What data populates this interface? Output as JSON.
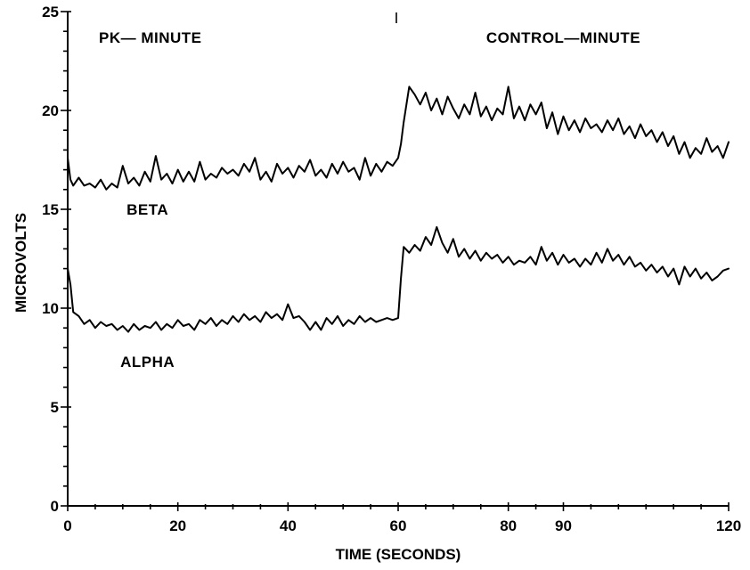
{
  "chart_data": {
    "type": "line",
    "xlabel": "TIME (SECONDS)",
    "ylabel": "MICROVOLTS",
    "xlim": [
      0,
      120
    ],
    "ylim": [
      0,
      25
    ],
    "x_ticks": [
      0,
      20,
      40,
      60,
      80,
      90,
      120
    ],
    "x_tick_labels": [
      "0",
      "20",
      "40",
      "60",
      "80",
      "90",
      "120"
    ],
    "y_ticks": [
      0,
      5,
      10,
      15,
      20,
      25
    ],
    "y_tick_labels": [
      "0",
      "5",
      "10",
      "15",
      "20",
      "25"
    ],
    "grid": false,
    "annotations": [
      {
        "text": "PK— MINUTE",
        "x": 15,
        "y": 23.7
      },
      {
        "text": "CONTROL—MINUTE",
        "x": 90,
        "y": 23.7
      },
      {
        "text": "BETA",
        "x": 14.5,
        "y": 15.0
      },
      {
        "text": "ALPHA",
        "x": 14.5,
        "y": 7.3
      }
    ],
    "divider_x": 60,
    "series": [
      {
        "name": "BETA",
        "x": [
          0,
          0.5,
          1,
          2,
          3,
          4,
          5,
          6,
          7,
          8,
          9,
          10,
          11,
          12,
          13,
          14,
          15,
          16,
          17,
          18,
          19,
          20,
          21,
          22,
          23,
          24,
          25,
          26,
          27,
          28,
          29,
          30,
          31,
          32,
          33,
          34,
          35,
          36,
          37,
          38,
          39,
          40,
          41,
          42,
          43,
          44,
          45,
          46,
          47,
          48,
          49,
          50,
          51,
          52,
          53,
          54,
          55,
          56,
          57,
          58,
          59,
          60,
          60.5,
          61,
          62,
          63,
          64,
          65,
          66,
          67,
          68,
          69,
          70,
          71,
          72,
          73,
          74,
          75,
          76,
          77,
          78,
          79,
          80,
          81,
          82,
          83,
          84,
          85,
          86,
          87,
          88,
          89,
          90,
          91,
          92,
          93,
          94,
          95,
          96,
          97,
          98,
          99,
          100,
          101,
          102,
          103,
          104,
          105,
          106,
          107,
          108,
          109,
          110,
          111,
          112,
          113,
          114,
          115,
          116,
          117,
          118,
          119,
          120
        ],
        "values": [
          17.6,
          16.5,
          16.2,
          16.6,
          16.2,
          16.3,
          16.1,
          16.5,
          16.0,
          16.3,
          16.1,
          17.2,
          16.3,
          16.6,
          16.2,
          16.9,
          16.4,
          17.7,
          16.5,
          16.8,
          16.3,
          17.0,
          16.4,
          16.9,
          16.4,
          17.4,
          16.5,
          16.8,
          16.6,
          17.1,
          16.8,
          17.0,
          16.7,
          17.3,
          16.9,
          17.6,
          16.5,
          16.9,
          16.4,
          17.3,
          16.8,
          17.1,
          16.6,
          17.2,
          16.9,
          17.5,
          16.7,
          17.0,
          16.6,
          17.3,
          16.8,
          17.4,
          16.9,
          17.1,
          16.5,
          17.6,
          16.7,
          17.3,
          16.9,
          17.4,
          17.2,
          17.6,
          18.3,
          19.4,
          21.2,
          20.8,
          20.3,
          20.9,
          20.0,
          20.6,
          19.8,
          20.7,
          20.1,
          19.6,
          20.3,
          19.8,
          20.9,
          19.7,
          20.2,
          19.5,
          20.1,
          19.8,
          21.2,
          19.6,
          20.2,
          19.5,
          20.3,
          19.8,
          20.4,
          19.1,
          19.9,
          18.8,
          19.7,
          19.0,
          19.5,
          18.9,
          19.6,
          19.1,
          19.3,
          18.9,
          19.5,
          19.0,
          19.6,
          18.8,
          19.2,
          18.6,
          19.3,
          18.7,
          19.0,
          18.4,
          18.9,
          18.2,
          18.7,
          17.8,
          18.4,
          17.6,
          18.1,
          17.8,
          18.6,
          17.9,
          18.2,
          17.6,
          18.4
        ]
      },
      {
        "name": "ALPHA",
        "x": [
          0,
          0.5,
          1,
          2,
          3,
          4,
          5,
          6,
          7,
          8,
          9,
          10,
          11,
          12,
          13,
          14,
          15,
          16,
          17,
          18,
          19,
          20,
          21,
          22,
          23,
          24,
          25,
          26,
          27,
          28,
          29,
          30,
          31,
          32,
          33,
          34,
          35,
          36,
          37,
          38,
          39,
          40,
          41,
          42,
          43,
          44,
          45,
          46,
          47,
          48,
          49,
          50,
          51,
          52,
          53,
          54,
          55,
          56,
          57,
          58,
          59,
          60,
          60.5,
          61,
          62,
          63,
          64,
          65,
          66,
          67,
          68,
          69,
          70,
          71,
          72,
          73,
          74,
          75,
          76,
          77,
          78,
          79,
          80,
          81,
          82,
          83,
          84,
          85,
          86,
          87,
          88,
          89,
          90,
          91,
          92,
          93,
          94,
          95,
          96,
          97,
          98,
          99,
          100,
          101,
          102,
          103,
          104,
          105,
          106,
          107,
          108,
          109,
          110,
          111,
          112,
          113,
          114,
          115,
          116,
          117,
          118,
          119,
          120
        ],
        "values": [
          12.0,
          11.2,
          9.8,
          9.6,
          9.2,
          9.4,
          9.0,
          9.3,
          9.1,
          9.2,
          8.9,
          9.1,
          8.8,
          9.2,
          8.9,
          9.1,
          9.0,
          9.3,
          8.9,
          9.2,
          9.0,
          9.4,
          9.1,
          9.2,
          8.9,
          9.4,
          9.2,
          9.5,
          9.1,
          9.4,
          9.2,
          9.6,
          9.3,
          9.7,
          9.4,
          9.6,
          9.3,
          9.8,
          9.5,
          9.7,
          9.4,
          10.2,
          9.5,
          9.6,
          9.3,
          8.9,
          9.3,
          8.9,
          9.5,
          9.2,
          9.6,
          9.1,
          9.4,
          9.2,
          9.6,
          9.3,
          9.5,
          9.3,
          9.4,
          9.5,
          9.4,
          9.5,
          11.5,
          13.1,
          12.8,
          13.2,
          12.9,
          13.6,
          13.2,
          14.1,
          13.3,
          12.8,
          13.5,
          12.6,
          13.0,
          12.5,
          12.9,
          12.4,
          12.8,
          12.5,
          12.7,
          12.3,
          12.6,
          12.2,
          12.4,
          12.3,
          12.6,
          12.2,
          13.1,
          12.4,
          12.8,
          12.2,
          12.7,
          12.3,
          12.5,
          12.1,
          12.5,
          12.2,
          12.8,
          12.3,
          13.0,
          12.4,
          12.7,
          12.2,
          12.6,
          12.1,
          12.3,
          11.9,
          12.2,
          11.8,
          12.1,
          11.6,
          12.0,
          11.2,
          12.1,
          11.6,
          12.0,
          11.5,
          11.8,
          11.4,
          11.6,
          11.9,
          12.0
        ]
      }
    ]
  }
}
